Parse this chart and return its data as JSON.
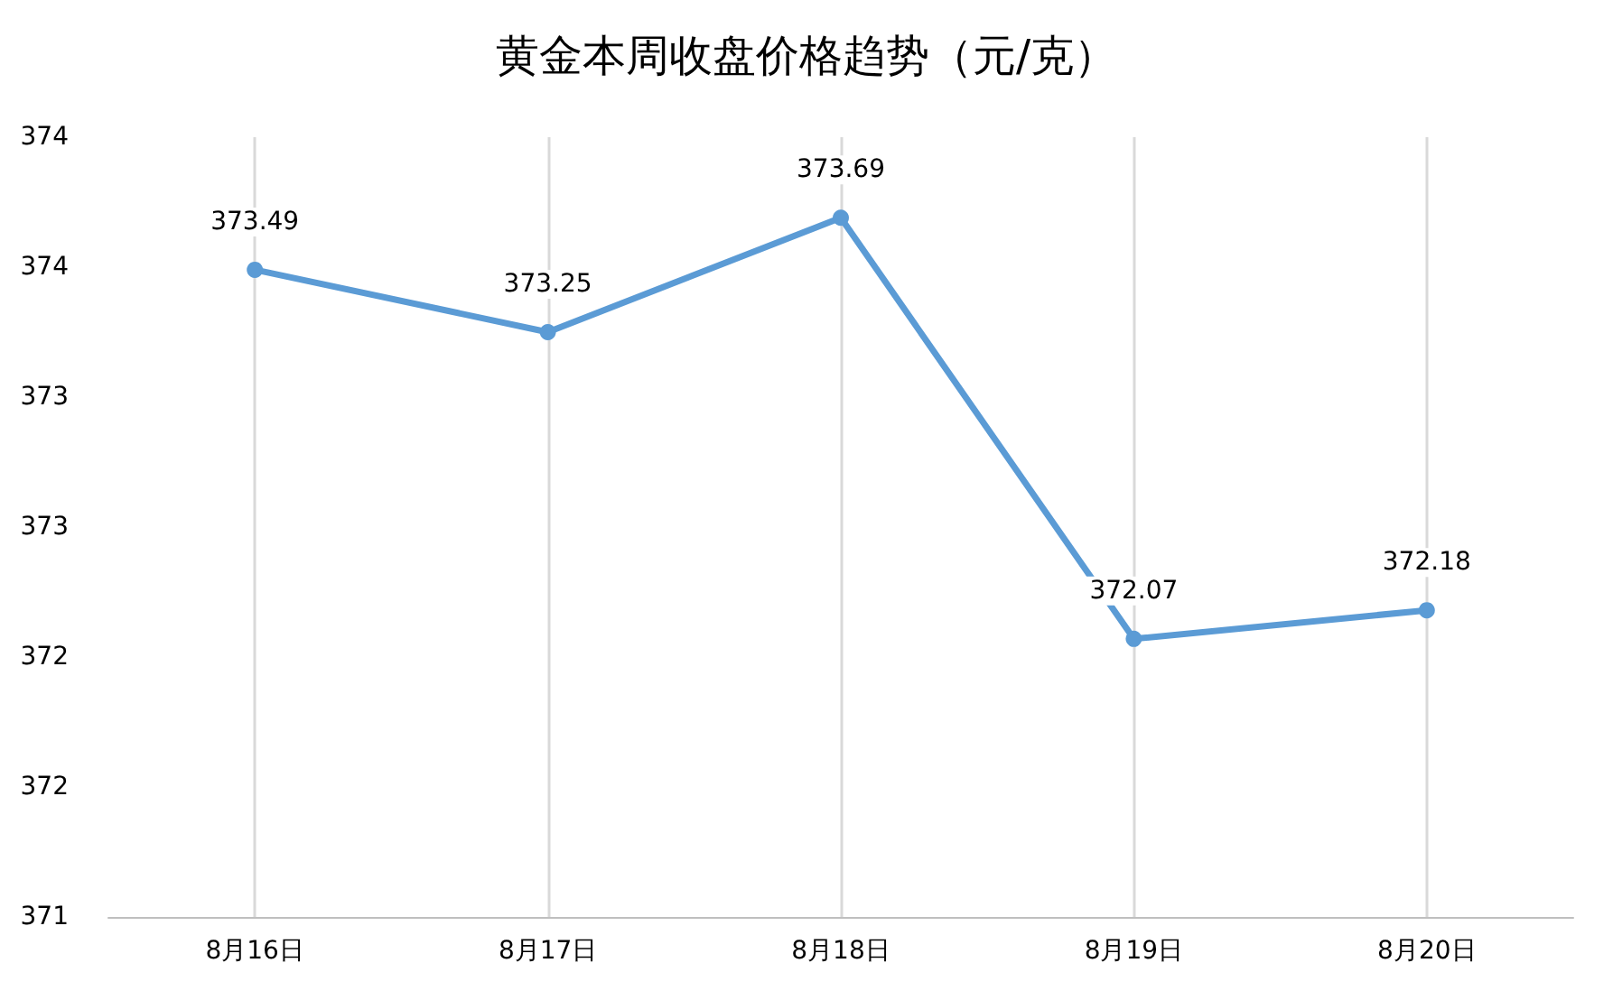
{
  "chart_data": {
    "type": "line",
    "title": "黄金本周收盘价格趋势（元/克）",
    "categories": [
      "8月16日",
      "8月17日",
      "8月18日",
      "8月19日",
      "8月20日"
    ],
    "series": [
      {
        "color": "#5b9bd5",
        "values": [
          373.49,
          373.25,
          373.69,
          372.07,
          372.18
        ]
      }
    ],
    "ylim": [
      371,
      374
    ],
    "yticks": [
      {
        "value": 371,
        "label": "371"
      },
      {
        "value": 371.5,
        "label": "372"
      },
      {
        "value": 372,
        "label": "372"
      },
      {
        "value": 372.5,
        "label": "373"
      },
      {
        "value": 373,
        "label": "373"
      },
      {
        "value": 373.5,
        "label": "374"
      },
      {
        "value": 374,
        "label": "374"
      }
    ],
    "grid": "x",
    "data_labels": true,
    "marker": "circle",
    "line_style": "solid"
  }
}
